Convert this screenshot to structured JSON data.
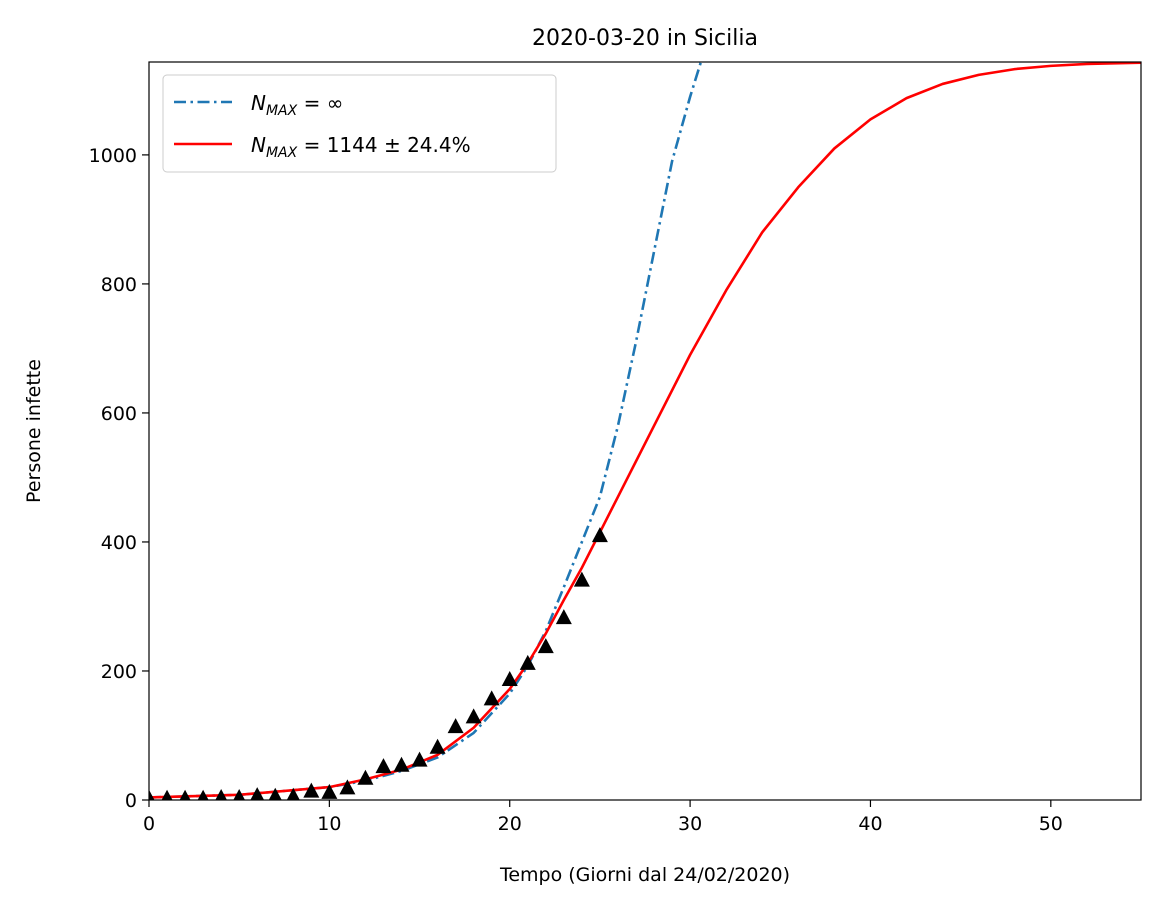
{
  "chart_data": {
    "type": "line",
    "title": "2020-03-20 in Sicilia",
    "xlabel": "Tempo (Giorni dal 24/02/2020)",
    "ylabel": "Persone infette",
    "xlim": [
      0,
      55
    ],
    "ylim": [
      0,
      1144
    ],
    "xticks": [
      0,
      10,
      20,
      30,
      40,
      50
    ],
    "yticks": [
      0,
      200,
      400,
      600,
      800,
      1000
    ],
    "grid": false,
    "legend_position": "upper-left",
    "legend": [
      {
        "base": "N",
        "sub": "MAX",
        "rest": " = ∞",
        "color": "#1f77b4",
        "dash": "dashdot"
      },
      {
        "base": "N",
        "sub": "MAX",
        "rest": " = 1144 ± 24.4%",
        "color": "#ff0000",
        "dash": "solid"
      }
    ],
    "series": [
      {
        "kind": "exponential-fit",
        "color": "#1f77b4",
        "x": [
          0,
          5,
          10,
          12,
          14,
          16,
          18,
          20,
          21,
          22,
          23,
          24,
          25,
          26,
          27,
          28,
          29,
          30,
          30.6
        ],
        "y": [
          4,
          8,
          20,
          30,
          45,
          66,
          104,
          165,
          208,
          262,
          330,
          400,
          470,
          580,
          710,
          850,
          990,
          1090,
          1144
        ]
      },
      {
        "kind": "logistic-fit",
        "color": "#ff0000",
        "x": [
          0,
          5,
          10,
          12,
          14,
          16,
          18,
          20,
          21,
          22,
          23,
          24,
          25,
          26,
          28,
          30,
          32,
          34,
          36,
          38,
          40,
          42,
          44,
          46,
          48,
          50,
          52,
          55
        ],
        "y": [
          4,
          8,
          20,
          32,
          47,
          70,
          112,
          172,
          212,
          258,
          310,
          360,
          415,
          470,
          580,
          690,
          790,
          880,
          950,
          1010,
          1055,
          1088,
          1110,
          1124,
          1133,
          1138,
          1141,
          1143
        ]
      },
      {
        "kind": "observed",
        "marker": "triangle",
        "color": "#000000",
        "x": [
          0,
          1,
          2,
          3,
          4,
          5,
          6,
          7,
          8,
          9,
          10,
          11,
          12,
          13,
          14,
          15,
          16,
          17,
          18,
          19,
          20,
          21,
          22,
          23,
          24,
          25
        ],
        "y": [
          2,
          2,
          2,
          2,
          3,
          3,
          6,
          5,
          5,
          13,
          11,
          18,
          33,
          51,
          53,
          61,
          81,
          113,
          128,
          156,
          186,
          211,
          237,
          282,
          340,
          409
        ]
      }
    ]
  }
}
